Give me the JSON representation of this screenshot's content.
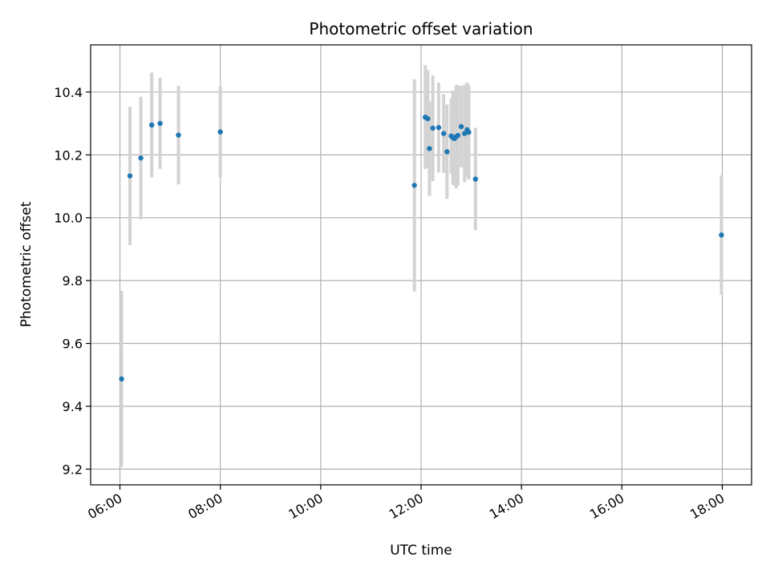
{
  "chart_data": {
    "type": "scatter",
    "title": "Photometric offset variation",
    "xlabel": "UTC time",
    "ylabel": "Photometric offset",
    "xlim": [
      "05:25",
      "18:35"
    ],
    "ylim": [
      9.15,
      10.55
    ],
    "x_ticks": [
      "06:00",
      "08:00",
      "10:00",
      "12:00",
      "14:00",
      "16:00",
      "18:00"
    ],
    "y_ticks": [
      "9.2",
      "9.4",
      "9.6",
      "9.8",
      "10.0",
      "10.2",
      "10.4"
    ],
    "grid": true,
    "colors": {
      "point": "#1f77b4",
      "errorbar": "#d3d3d3"
    },
    "points": [
      {
        "x": "06:02",
        "y": 9.487,
        "err": 0.28
      },
      {
        "x": "06:12",
        "y": 10.133,
        "err": 0.22
      },
      {
        "x": "06:25",
        "y": 10.19,
        "err": 0.195
      },
      {
        "x": "06:38",
        "y": 10.295,
        "err": 0.167
      },
      {
        "x": "06:48",
        "y": 10.3,
        "err": 0.145
      },
      {
        "x": "07:10",
        "y": 10.263,
        "err": 0.157
      },
      {
        "x": "08:00",
        "y": 10.273,
        "err": 0.145
      },
      {
        "x": "11:52",
        "y": 10.103,
        "err": 0.338
      },
      {
        "x": "12:05",
        "y": 10.32,
        "err": 0.165
      },
      {
        "x": "12:08",
        "y": 10.315,
        "err": 0.155
      },
      {
        "x": "12:10",
        "y": 10.22,
        "err": 0.15
      },
      {
        "x": "12:14",
        "y": 10.285,
        "err": 0.168
      },
      {
        "x": "12:21",
        "y": 10.287,
        "err": 0.143
      },
      {
        "x": "12:27",
        "y": 10.268,
        "err": 0.125
      },
      {
        "x": "12:31",
        "y": 10.21,
        "err": 0.15
      },
      {
        "x": "12:36",
        "y": 10.26,
        "err": 0.12
      },
      {
        "x": "12:38",
        "y": 10.255,
        "err": 0.15
      },
      {
        "x": "12:40",
        "y": 10.252,
        "err": 0.15
      },
      {
        "x": "12:42",
        "y": 10.258,
        "err": 0.165
      },
      {
        "x": "12:44",
        "y": 10.262,
        "err": 0.16
      },
      {
        "x": "12:48",
        "y": 10.29,
        "err": 0.13
      },
      {
        "x": "12:52",
        "y": 10.268,
        "err": 0.155
      },
      {
        "x": "12:55",
        "y": 10.28,
        "err": 0.15
      },
      {
        "x": "12:57",
        "y": 10.272,
        "err": 0.15
      },
      {
        "x": "13:05",
        "y": 10.123,
        "err": 0.163
      },
      {
        "x": "17:59",
        "y": 9.945,
        "err": 0.19
      }
    ]
  }
}
